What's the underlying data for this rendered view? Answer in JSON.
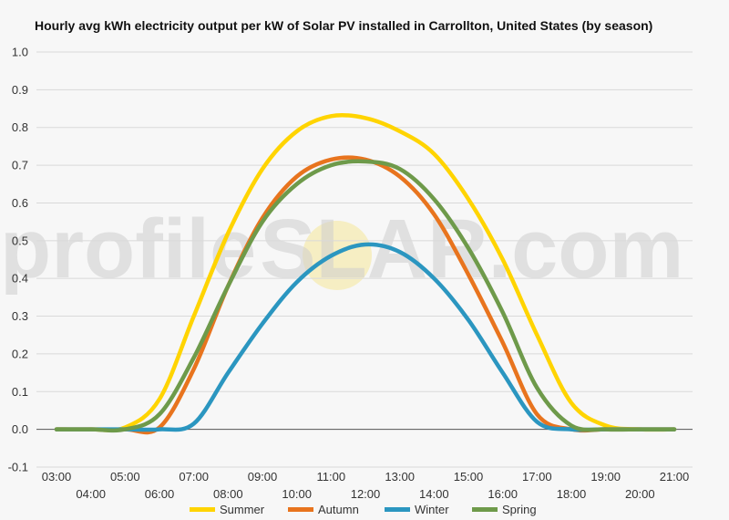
{
  "chart_data": {
    "type": "line",
    "title": "Hourly avg kWh electricity output per kW of Solar PV installed in Carrollton, United States (by season)",
    "xlabel": "",
    "ylabel": "",
    "ylim": [
      -0.1,
      1.0
    ],
    "yticks": [
      "1.0",
      "0.9",
      "0.8",
      "0.7",
      "0.6",
      "0.5",
      "0.4",
      "0.3",
      "0.2",
      "0.1",
      "0.0",
      "-0.1"
    ],
    "yticks_values": [
      1.0,
      0.9,
      0.8,
      0.7,
      0.6,
      0.5,
      0.4,
      0.3,
      0.2,
      0.1,
      0.0,
      -0.1
    ],
    "x": [
      "03:00",
      "04:00",
      "05:00",
      "06:00",
      "07:00",
      "08:00",
      "09:00",
      "10:00",
      "11:00",
      "12:00",
      "13:00",
      "14:00",
      "15:00",
      "16:00",
      "17:00",
      "18:00",
      "19:00",
      "20:00",
      "21:00"
    ],
    "grid": true,
    "legend_position": "bottom",
    "series": [
      {
        "name": "Summer",
        "color": "#ffd400",
        "values": [
          0,
          0,
          0.005,
          0.08,
          0.3,
          0.52,
          0.69,
          0.79,
          0.83,
          0.825,
          0.79,
          0.73,
          0.61,
          0.45,
          0.25,
          0.07,
          0.01,
          0,
          0
        ]
      },
      {
        "name": "Autumn",
        "color": "#e8741e",
        "values": [
          0,
          0,
          0,
          0.005,
          0.16,
          0.38,
          0.56,
          0.67,
          0.715,
          0.715,
          0.67,
          0.57,
          0.41,
          0.23,
          0.04,
          0.0,
          0,
          0,
          0
        ]
      },
      {
        "name": "Winter",
        "color": "#2b96c0",
        "values": [
          0,
          0,
          0,
          0,
          0.015,
          0.15,
          0.28,
          0.39,
          0.46,
          0.49,
          0.47,
          0.4,
          0.29,
          0.15,
          0.02,
          0,
          0,
          0,
          0
        ]
      },
      {
        "name": "Spring",
        "color": "#6e9a4a",
        "values": [
          0,
          0,
          0,
          0.04,
          0.19,
          0.38,
          0.55,
          0.65,
          0.7,
          0.71,
          0.69,
          0.61,
          0.48,
          0.31,
          0.11,
          0.01,
          0,
          0,
          0
        ]
      }
    ]
  },
  "watermark": {
    "text_left": "profile",
    "text_o": "S",
    "text_right": "LAR.com",
    "color": "#cfcfcf"
  }
}
